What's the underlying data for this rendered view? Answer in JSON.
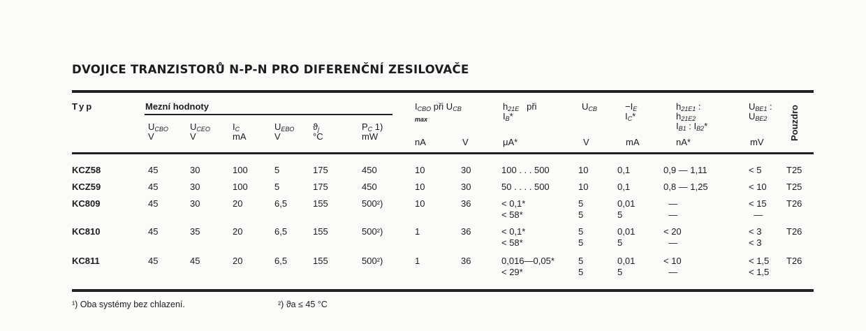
{
  "title": "DVOJICE TRANZISTORŮ N-P-N PRO DIFERENČNÍ ZESILOVAČE",
  "header": {
    "typ": "Typ",
    "group_limits": "Mezní hodnoty",
    "columns": [
      {
        "main": "U",
        "sub": "CBO",
        "unit": "V"
      },
      {
        "main": "U",
        "sub": "CEO",
        "unit": "V"
      },
      {
        "main": "I",
        "sub": "C",
        "unit": "mA"
      },
      {
        "main": "U",
        "sub": "EBO",
        "unit": "V"
      },
      {
        "main": "ϑ",
        "sub": "j",
        "unit": "°C"
      },
      {
        "main": "P",
        "sub": "C",
        "extra": " 1)",
        "unit": "mW"
      }
    ],
    "icbo": {
      "main": "I",
      "sub": "CBO",
      "extra": " při U",
      "sub2": "CB",
      "max": "max",
      "unit": "nA",
      "unit2": "V"
    },
    "h21e": {
      "main": "h",
      "sub": "21E",
      "extra": "   při",
      "line2": "I",
      "line2_sub": "B",
      "line2_extra": "*",
      "unit": "μA*"
    },
    "ucb": {
      "main": "U",
      "sub": "CB",
      "unit": "V"
    },
    "ie": {
      "main": "−I",
      "sub": "E",
      "line2": "I",
      "line2_sub": "C",
      "line2_extra": "*",
      "unit": "mA"
    },
    "ratio": {
      "l1": "h",
      "l1_sub": "21E1",
      "l1_extra": " :",
      "l2": "h",
      "l2_sub": "21E2",
      "l3": "I",
      "l3_sub": "B1",
      "l3_extra": " : I",
      "l3_sub2": "B2",
      "l3_end": "*",
      "unit": "nA*"
    },
    "ube": {
      "l1": "U",
      "l1_sub": "BE1",
      "l1_extra": " :",
      "l2": "U",
      "l2_sub": "BE2",
      "unit": "mV"
    },
    "package": "Pouzdro"
  },
  "rows": [
    {
      "typ": "KCZ58",
      "cells": [
        "45",
        "30",
        "100",
        "5",
        "175",
        "450",
        "10",
        "30",
        "100 . . . 500",
        "10",
        "0,1",
        "0,9 — 1,11",
        "< 5",
        "T25"
      ]
    },
    {
      "typ": "KCZ59",
      "cells": [
        "45",
        "30",
        "100",
        "5",
        "175",
        "450",
        "10",
        "30",
        "50 . . . . 500",
        "10",
        "0,1",
        "0,8 — 1,25",
        "< 10",
        "T25"
      ]
    },
    {
      "typ": "KC809",
      "cells": [
        "45",
        "30",
        "20",
        "6,5",
        "155",
        "500²)",
        "10",
        "36",
        "< 0,1*\n< 58*",
        "5\n5",
        "0,01\n5",
        "  —\n  —",
        "< 15\n  —",
        "T26"
      ]
    },
    {
      "typ": "KC810",
      "cells": [
        "45",
        "35",
        "20",
        "6,5",
        "155",
        "500²)",
        "1",
        "36",
        "< 0,1*\n< 58*",
        "5\n5",
        "0,01\n5",
        "< 20\n  —",
        "< 3\n< 3",
        "T26"
      ]
    },
    {
      "typ": "KC811",
      "cells": [
        "45",
        "45",
        "20",
        "6,5",
        "155",
        "500²)",
        "1",
        "36",
        "0,016—0,05*\n< 29*",
        "5\n5",
        "0,01\n5",
        "< 10\n  —",
        "< 1,5\n< 1,5",
        "T26"
      ]
    }
  ],
  "footnotes": [
    "¹) Oba systémy bez chlazení.",
    "²) ϑa ≤ 45 °C"
  ]
}
